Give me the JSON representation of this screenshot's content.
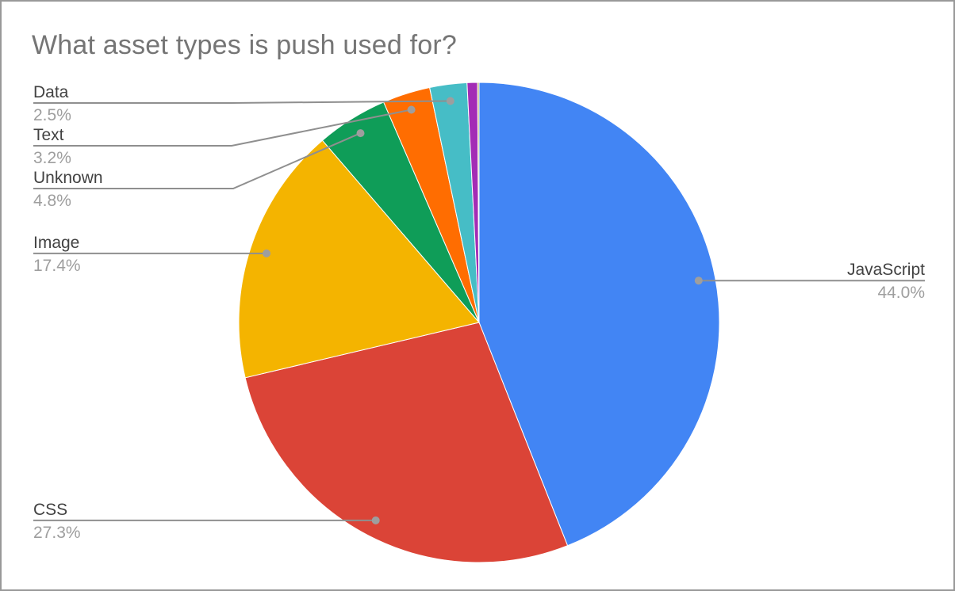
{
  "title": "What asset types is push used for?",
  "chart_data": {
    "type": "pie",
    "title": "What asset types is push used for?",
    "direction": "clockwise",
    "start_angle_deg": 0,
    "legend_position": "outside-callout-labels",
    "slices": [
      {
        "label": "JavaScript",
        "value_pct": 44.0,
        "display": "44.0%",
        "color": "#4285F4"
      },
      {
        "label": "CSS",
        "value_pct": 27.3,
        "display": "27.3%",
        "color": "#DB4437"
      },
      {
        "label": "Image",
        "value_pct": 17.4,
        "display": "17.4%",
        "color": "#F4B400"
      },
      {
        "label": "Unknown",
        "value_pct": 4.8,
        "display": "4.8%",
        "color": "#0F9D58"
      },
      {
        "label": "Text",
        "value_pct": 3.2,
        "display": "3.2%",
        "color": "#FF6D01"
      },
      {
        "label": "Data",
        "value_pct": 2.5,
        "display": "2.5%",
        "color": "#46BDC6"
      },
      {
        "label": "",
        "value_pct": 0.7,
        "display": "",
        "color": "#A32CB5"
      },
      {
        "label": "",
        "value_pct": 0.1,
        "display": "",
        "color": "#B1A33C"
      }
    ]
  },
  "styles": {
    "frame_border_color": "#999999",
    "title_color": "#757575",
    "label_color": "#424242",
    "percent_color": "#9E9E9E",
    "callout_line_color": "#8F8F8F",
    "callout_dot_color": "#9E9E9E",
    "background": "#FFFFFF"
  }
}
